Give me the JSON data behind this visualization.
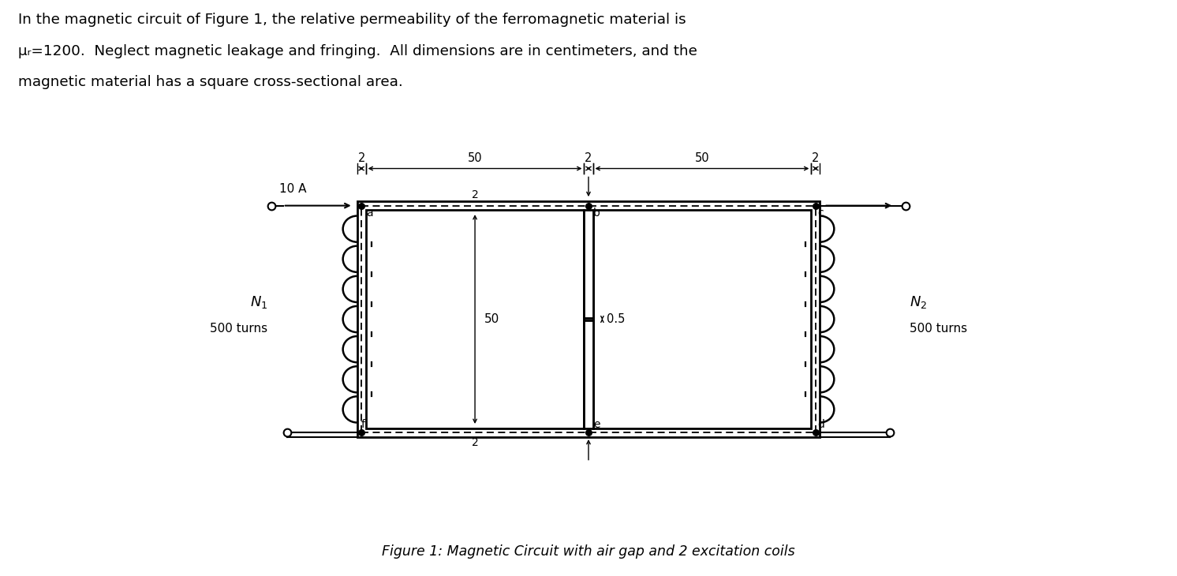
{
  "title_text": "Figure 1: Magnetic Circuit with air gap and 2 excitation coils",
  "header_line1": "In the magnetic circuit of Figure 1, the relative permeability of the ferromagnetic material is",
  "header_line2": "μᵣ=1200.  Neglect magnetic leakage and fringing.  All dimensions are in centimeters, and the",
  "header_line3": "magnetic material has a square cross-sectional area.",
  "bg_color": "#ffffff",
  "lc": "#000000"
}
